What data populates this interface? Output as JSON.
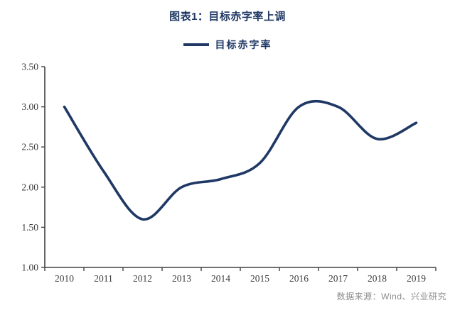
{
  "header": {
    "title": "图表1：目标赤字率上调"
  },
  "legend": {
    "label": "目标赤字率"
  },
  "footer": {
    "source": "数据来源：Wind、兴业研究"
  },
  "chart_data": {
    "type": "line",
    "title": "图表1：目标赤字率上调",
    "categories": [
      "2010",
      "2011",
      "2012",
      "2013",
      "2014",
      "2015",
      "2016",
      "2017",
      "2018",
      "2019"
    ],
    "series": [
      {
        "name": "目标赤字率",
        "values": [
          3.0,
          2.2,
          1.6,
          2.0,
          2.1,
          2.3,
          3.0,
          3.0,
          2.6,
          2.8
        ]
      }
    ],
    "xlabel": "",
    "ylabel": "",
    "ylim": [
      1.0,
      3.5
    ],
    "ytick_step": 0.5,
    "ytick_labels": [
      "3.50",
      "3.00",
      "2.50",
      "2.00",
      "1.50",
      "1.00"
    ],
    "grid": false,
    "smoothed": true,
    "legend_position": "top",
    "source": "数据来源：Wind、兴业研究",
    "colors": {
      "line": "#1f3864",
      "title": "#1f3864",
      "axis": "#404040",
      "tick_label": "#3d3d3d",
      "source_text": "#8c8c8c"
    }
  }
}
